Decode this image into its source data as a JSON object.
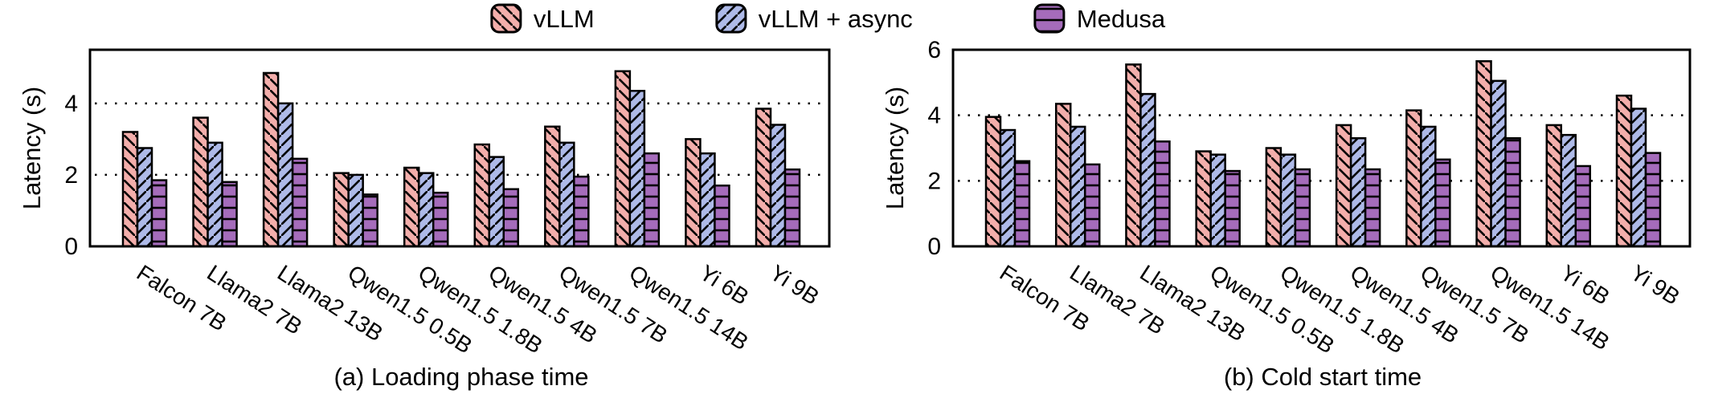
{
  "figure": {
    "background": "#ffffff"
  },
  "legend": {
    "items": [
      {
        "label": "vLLM",
        "color": "#f3aeab",
        "hatch": "backslash"
      },
      {
        "label": "vLLM + async",
        "color": "#aebae8",
        "hatch": "slash"
      },
      {
        "label": "Medusa",
        "color": "#a56cbb",
        "hatch": "horizontal"
      }
    ]
  },
  "chart_data": [
    {
      "type": "bar",
      "title": "(a) Loading phase time",
      "ylabel": "Latency (s)",
      "ylim": [
        0,
        5.5
      ],
      "yticks": [
        0,
        2,
        4
      ],
      "gridlines": [
        2,
        4
      ],
      "grid_style": "dotted",
      "legend_position": "top-center",
      "categories": [
        "Falcon 7B",
        "Llama2 7B",
        "Llama2 13B",
        "Qwen1.5 0.5B",
        "Qwen1.5 1.8B",
        "Qwen1.5 4B",
        "Qwen1.5 7B",
        "Qwen1.5 14B",
        "Yi 6B",
        "Yi 9B"
      ],
      "series": [
        {
          "name": "vLLM",
          "values": [
            3.2,
            3.6,
            4.85,
            2.05,
            2.2,
            2.85,
            3.35,
            4.9,
            3.0,
            3.85
          ]
        },
        {
          "name": "vLLM + async",
          "values": [
            2.75,
            2.9,
            4.0,
            2.0,
            2.05,
            2.5,
            2.9,
            4.35,
            2.6,
            3.4
          ]
        },
        {
          "name": "Medusa",
          "values": [
            1.85,
            1.8,
            2.45,
            1.45,
            1.5,
            1.6,
            1.95,
            2.6,
            1.7,
            2.15
          ]
        }
      ]
    },
    {
      "type": "bar",
      "title": "(b) Cold start time",
      "ylabel": "Latency (s)",
      "ylim": [
        0,
        6
      ],
      "yticks": [
        0,
        2,
        4,
        6
      ],
      "gridlines": [
        2,
        4
      ],
      "grid_style": "dotted",
      "legend_position": "top-center",
      "categories": [
        "Falcon 7B",
        "Llama2 7B",
        "Llama2 13B",
        "Qwen1.5 0.5B",
        "Qwen1.5 1.8B",
        "Qwen1.5 4B",
        "Qwen1.5 7B",
        "Qwen1.5 14B",
        "Yi 6B",
        "Yi 9B"
      ],
      "series": [
        {
          "name": "vLLM",
          "values": [
            3.95,
            4.35,
            5.55,
            2.9,
            3.0,
            3.7,
            4.15,
            5.65,
            3.7,
            4.6
          ]
        },
        {
          "name": "vLLM + async",
          "values": [
            3.55,
            3.65,
            4.65,
            2.8,
            2.8,
            3.3,
            3.65,
            5.05,
            3.4,
            4.2
          ]
        },
        {
          "name": "Medusa",
          "values": [
            2.6,
            2.5,
            3.2,
            2.3,
            2.35,
            2.35,
            2.65,
            3.3,
            2.45,
            2.85
          ]
        }
      ]
    }
  ]
}
